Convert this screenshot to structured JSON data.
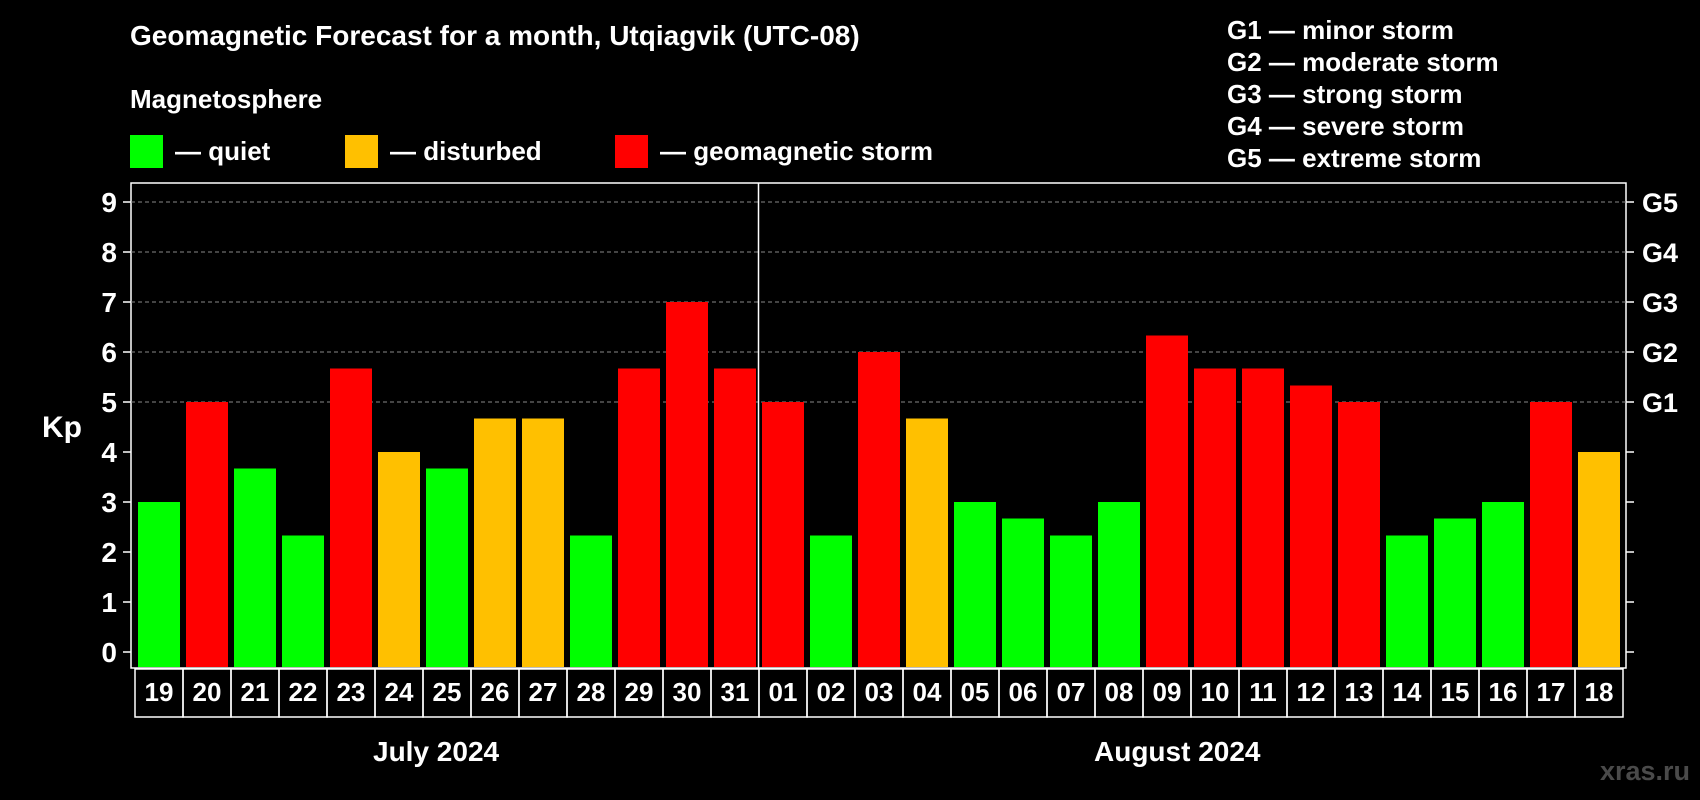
{
  "title": "Geomagnetic Forecast for a month, Utqiagvik (UTC-08)",
  "subtitle": "Magnetosphere",
  "legend": [
    {
      "label": "— quiet",
      "color": "#00ff00"
    },
    {
      "label": "— disturbed",
      "color": "#ffc000"
    },
    {
      "label": "— geomagnetic storm",
      "color": "#ff0000"
    }
  ],
  "storm_levels": [
    "G1 — minor storm",
    "G2 — moderate storm",
    "G3 — strong storm",
    "G4 — severe storm",
    "G5 — extreme storm"
  ],
  "months": [
    "July 2024",
    "August 2024"
  ],
  "watermark": "xras.ru",
  "colors": {
    "quiet": "#00ff00",
    "disturbed": "#ffc000",
    "storm": "#ff0000",
    "background": "#000000",
    "axis": "#ffffff"
  },
  "chart_data": {
    "type": "bar",
    "ylabel": "Kp",
    "ylim": [
      0,
      9
    ],
    "yticks": [
      0,
      1,
      2,
      3,
      4,
      5,
      6,
      7,
      8,
      9
    ],
    "right_axis_labels": [
      {
        "kp": 5,
        "label": "G1"
      },
      {
        "kp": 6,
        "label": "G2"
      },
      {
        "kp": 7,
        "label": "G3"
      },
      {
        "kp": 8,
        "label": "G4"
      },
      {
        "kp": 9,
        "label": "G5"
      }
    ],
    "grid": "dashed horizontal at 5–9",
    "categories": [
      "19",
      "20",
      "21",
      "22",
      "23",
      "24",
      "25",
      "26",
      "27",
      "28",
      "29",
      "30",
      "31",
      "01",
      "02",
      "03",
      "04",
      "05",
      "06",
      "07",
      "08",
      "09",
      "10",
      "11",
      "12",
      "13",
      "14",
      "15",
      "16",
      "17",
      "18"
    ],
    "values": [
      3.0,
      5.0,
      3.67,
      2.33,
      5.67,
      4.0,
      3.67,
      4.67,
      4.67,
      2.33,
      5.67,
      7.0,
      5.67,
      5.0,
      2.33,
      6.0,
      4.67,
      3.0,
      2.67,
      2.33,
      3.0,
      6.33,
      5.67,
      5.67,
      5.33,
      5.0,
      2.33,
      2.67,
      3.0,
      5.0,
      4.0
    ],
    "status": [
      "quiet",
      "storm",
      "quiet",
      "quiet",
      "storm",
      "disturbed",
      "quiet",
      "disturbed",
      "disturbed",
      "quiet",
      "storm",
      "storm",
      "storm",
      "storm",
      "quiet",
      "storm",
      "disturbed",
      "quiet",
      "quiet",
      "quiet",
      "quiet",
      "storm",
      "storm",
      "storm",
      "storm",
      "storm",
      "quiet",
      "quiet",
      "quiet",
      "storm",
      "disturbed"
    ],
    "month_groups": [
      {
        "label": "July 2024",
        "count": 13
      },
      {
        "label": "August 2024",
        "count": 18
      }
    ]
  }
}
